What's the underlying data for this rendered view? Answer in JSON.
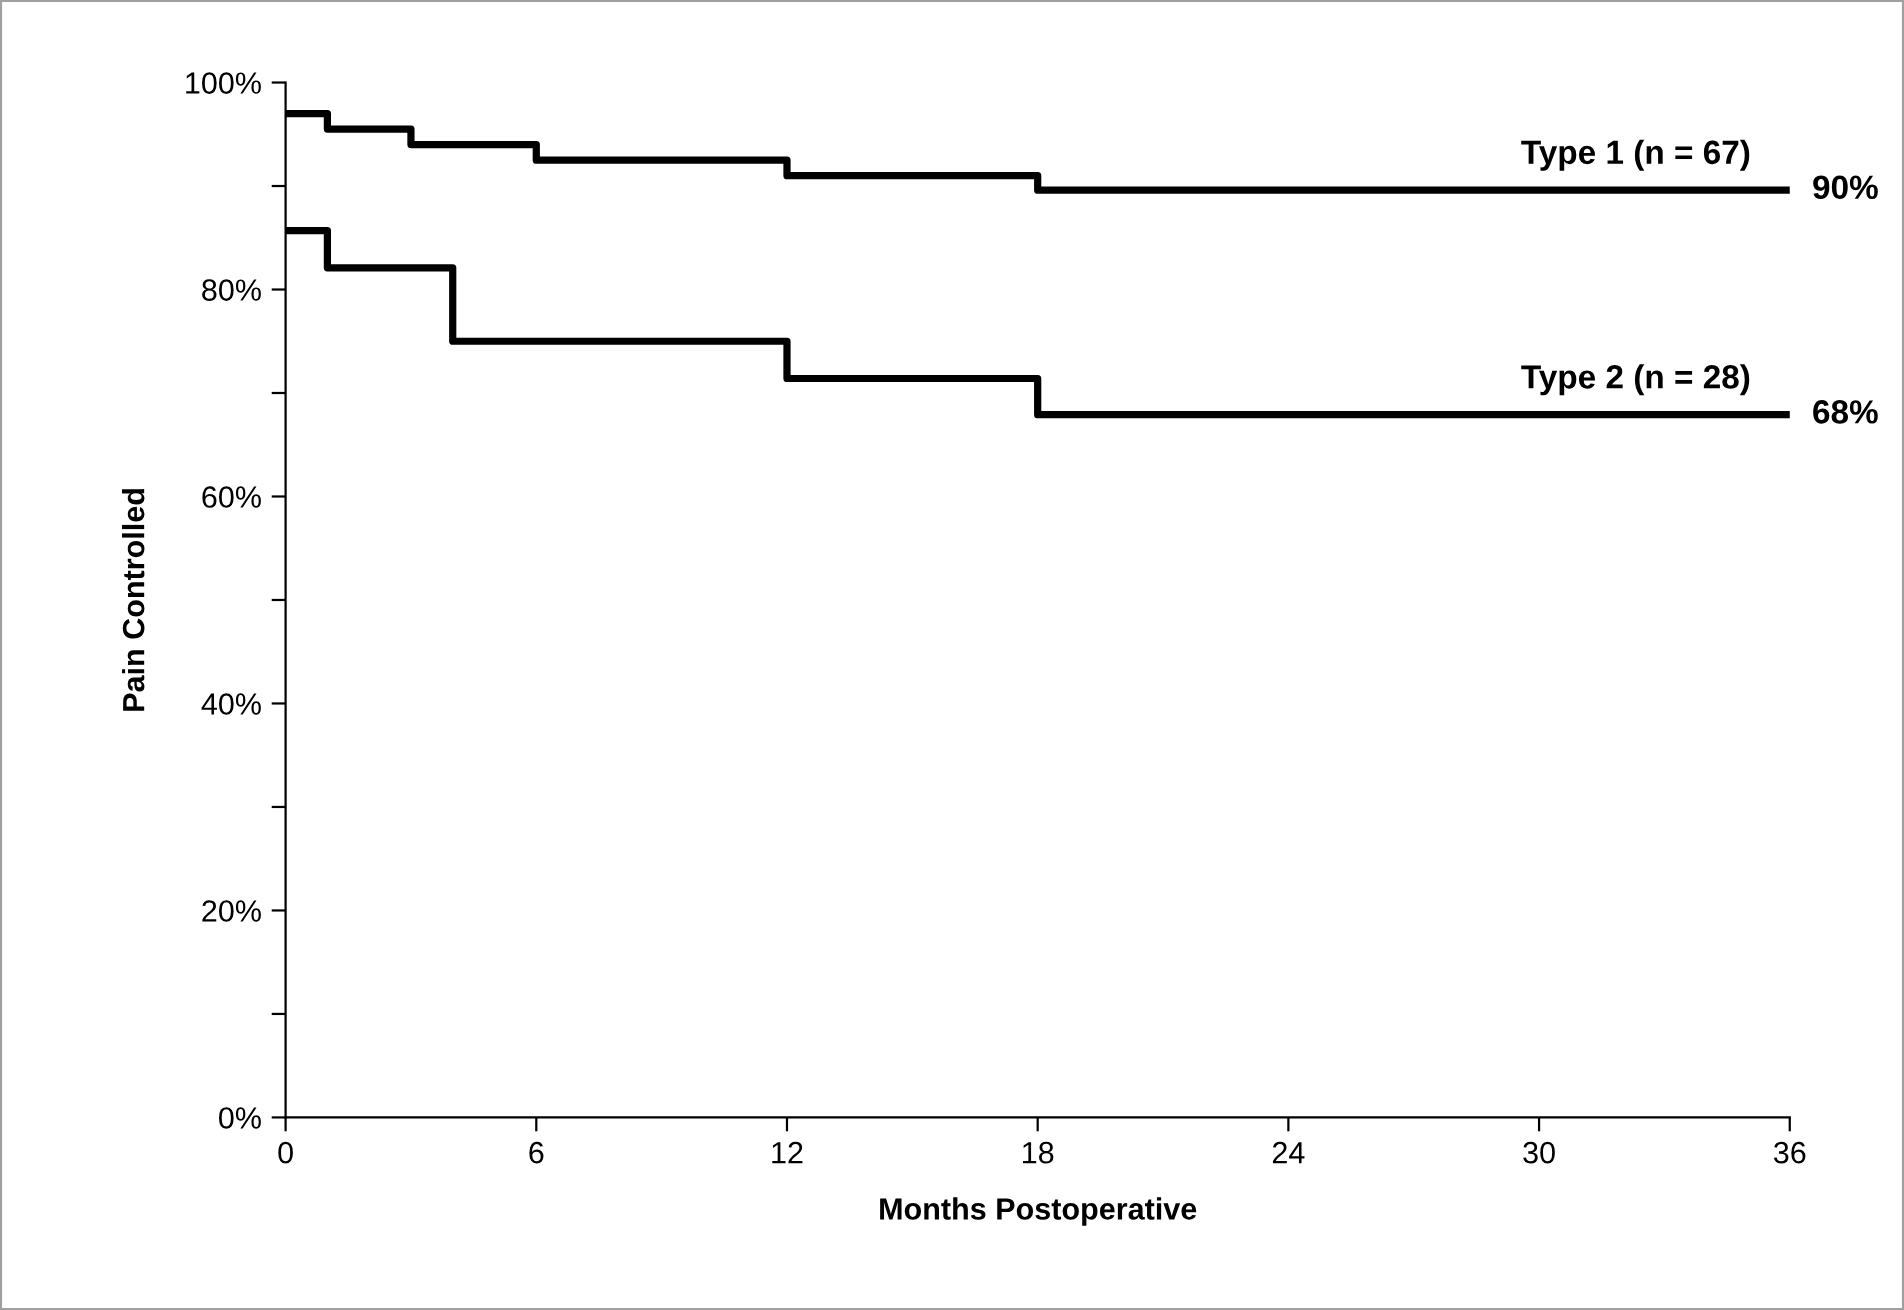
{
  "chart_data": {
    "type": "step",
    "xlabel": "Months Postoperative",
    "ylabel": "Pain Controlled",
    "series": [
      {
        "name": "Type 1 (n = 67)",
        "color": "#000000",
        "x": [
          0,
          1,
          3,
          6,
          12,
          18,
          36
        ],
        "values": [
          97.0,
          95.5,
          94.0,
          92.5,
          91.0,
          89.6,
          89.6
        ]
      },
      {
        "name": "Type 2 (n = 28)",
        "color": "#000000",
        "x": [
          0,
          1,
          4,
          12,
          18,
          36
        ],
        "values": [
          85.7,
          82.1,
          75.0,
          71.4,
          67.9,
          67.9
        ]
      }
    ],
    "annotations": [
      {
        "text": "90%",
        "x": 36,
        "y": 89.6
      },
      {
        "text": "68%",
        "x": 36,
        "y": 67.9
      }
    ],
    "xlim": [
      0,
      36
    ],
    "xticks": [
      0,
      6,
      12,
      18,
      24,
      30,
      36
    ],
    "ylim": [
      0,
      100
    ],
    "yticks": [
      {
        "value": 0,
        "label": "0%"
      },
      {
        "value": 10,
        "label": null
      },
      {
        "value": 20,
        "label": "20%"
      },
      {
        "value": 30,
        "label": null
      },
      {
        "value": 40,
        "label": "40%"
      },
      {
        "value": 50,
        "label": null
      },
      {
        "value": 60,
        "label": "60%"
      },
      {
        "value": 70,
        "label": null
      },
      {
        "value": 80,
        "label": "80%"
      },
      {
        "value": 90,
        "label": null
      },
      {
        "value": 100,
        "label": "100%"
      }
    ],
    "grid": false,
    "legend": false,
    "line_style": "solid",
    "marker": "none"
  }
}
